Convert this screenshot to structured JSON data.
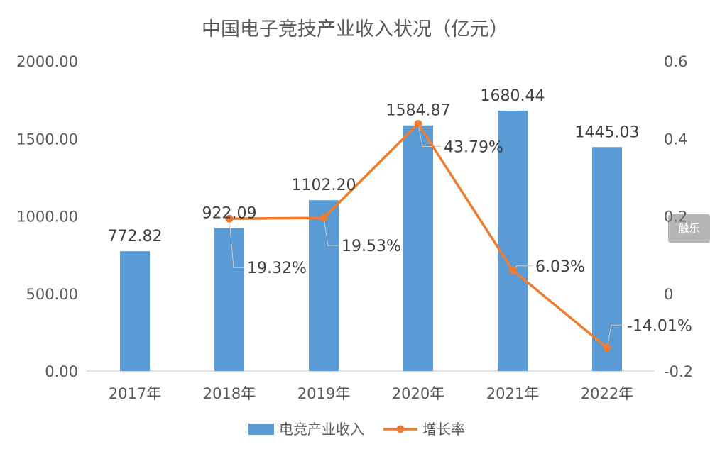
{
  "chart_data": {
    "type": "bar",
    "title": "中国电子竞技产业收入状况（亿元）",
    "categories": [
      "2017年",
      "2018年",
      "2019年",
      "2020年",
      "2021年",
      "2022年"
    ],
    "series": [
      {
        "name": "电竞产业收入",
        "type": "bar",
        "axis": "left",
        "color": "#5b9bd5",
        "values": [
          772.82,
          922.09,
          1102.2,
          1584.87,
          1680.44,
          1445.03
        ],
        "labels": [
          "772.82",
          "922.09",
          "1102.20",
          "1584.87",
          "1680.44",
          "1445.03"
        ]
      },
      {
        "name": "增长率",
        "type": "line",
        "axis": "right",
        "color": "#ed7d31",
        "values": [
          null,
          0.1932,
          0.1953,
          0.4379,
          0.0603,
          -0.1401
        ],
        "labels": [
          "",
          "19.32%",
          "19.53%",
          "43.79%",
          "6.03%",
          "-14.01%"
        ]
      }
    ],
    "y_left": {
      "ticks": [
        "0.00",
        "500.00",
        "1000.00",
        "1500.00",
        "2000.00"
      ],
      "ylim": [
        0,
        2000
      ]
    },
    "y_right": {
      "ticks": [
        "-0.2",
        "0",
        "0.2",
        "0.4",
        "0.6"
      ],
      "ylim": [
        -0.2,
        0.6
      ]
    },
    "legend_position": "bottom"
  },
  "watermark": "触乐"
}
